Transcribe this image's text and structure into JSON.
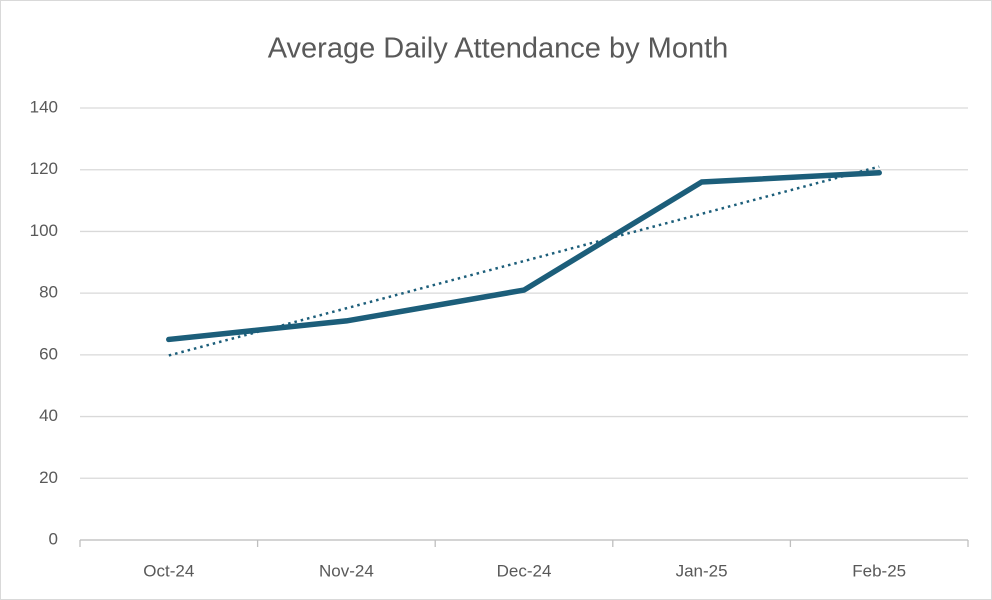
{
  "chart_data": {
    "type": "line",
    "title": "Average Daily Attendance by Month",
    "categories": [
      "Oct-24",
      "Nov-24",
      "Dec-24",
      "Jan-25",
      "Feb-25"
    ],
    "values": [
      65,
      71,
      81,
      116,
      119
    ],
    "color": "#1c5e7a",
    "trendline": "linear",
    "ylim": [
      0,
      140
    ],
    "yticks": [
      0,
      20,
      40,
      60,
      80,
      100,
      120,
      140
    ],
    "grid": true
  }
}
